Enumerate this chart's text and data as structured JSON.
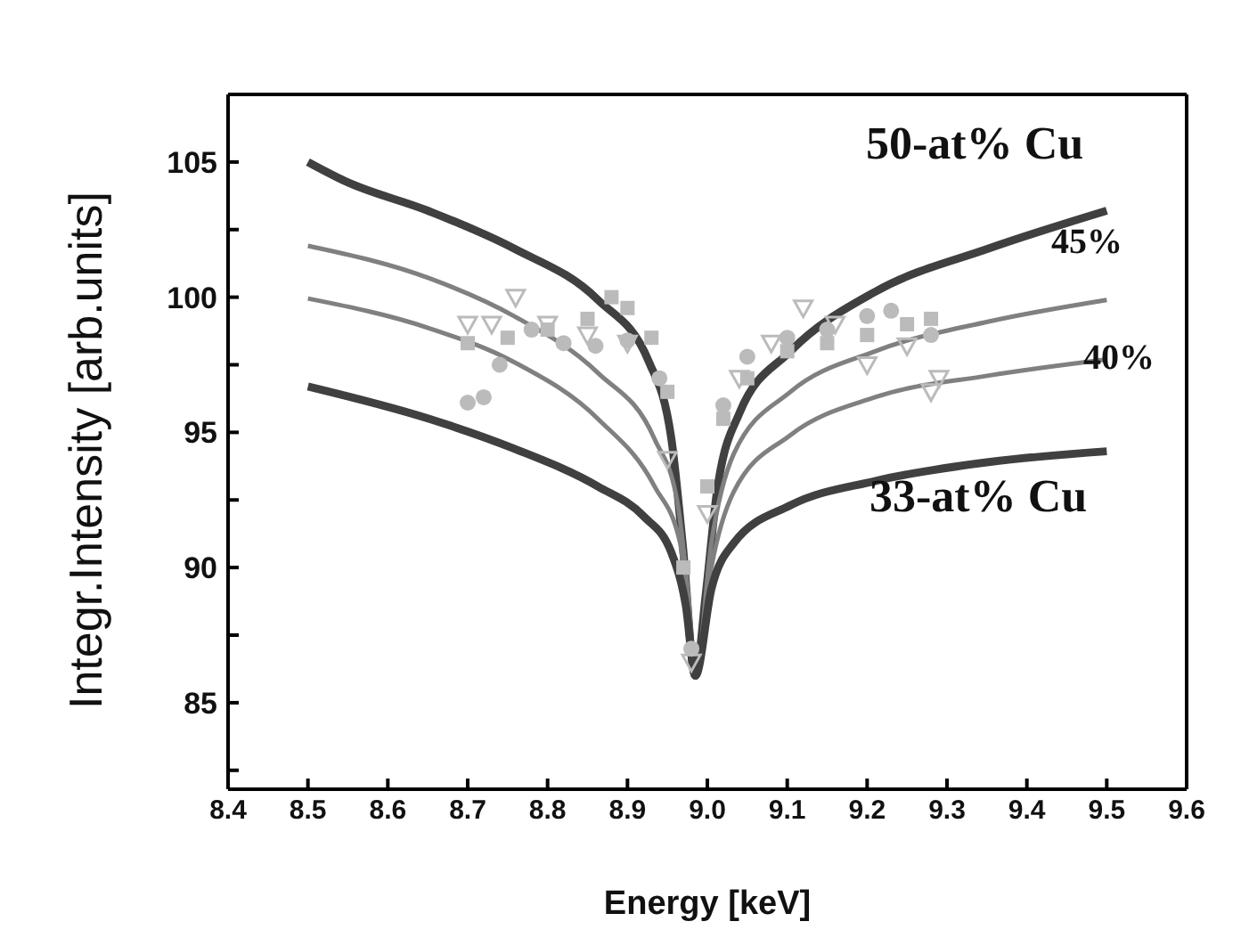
{
  "chart_data": {
    "type": "line",
    "xlabel": "Energy [keV]",
    "ylabel": "Integr.Intensity [arb.units]",
    "xlim": [
      8.4,
      9.6
    ],
    "xticks": [
      8.4,
      8.5,
      8.6,
      8.7,
      8.8,
      8.9,
      {
        "value": 9,
        "label": "9.0"
      },
      9.1,
      9.2,
      9.3,
      9.4,
      9.5,
      9.6
    ],
    "ylim": [
      81.8,
      107.5
    ],
    "yticks": [
      {
        "value": 82.5,
        "label": null
      },
      85,
      {
        "value": 87.5,
        "label": null
      },
      90,
      {
        "value": 92.5,
        "label": null
      },
      95,
      {
        "value": 97.5,
        "label": null
      },
      100,
      {
        "value": 102.5,
        "label": null
      },
      105
    ],
    "grid": false,
    "legend": false,
    "series": [
      {
        "color": "#404040",
        "x": [
          8.5,
          8.546,
          8.65,
          8.758,
          8.863,
          8.927,
          8.955,
          8.969,
          8.985,
          8.998,
          9.012,
          9.04,
          9.104,
          9.21,
          9.352,
          9.5
        ],
        "values": [
          105.0,
          104.3,
          103.2,
          101.8,
          99.9,
          97.6,
          94.75,
          90.9,
          86.0,
          89.0,
          92.8,
          95.7,
          98.0,
          100.2,
          101.8,
          103.2
        ]
      },
      {
        "color": "#808080",
        "x": [
          8.5,
          8.652,
          8.758,
          8.863,
          8.934,
          8.962,
          8.976,
          8.985,
          9.005,
          9.033,
          9.104,
          9.21,
          9.352,
          9.5
        ],
        "values": [
          101.9,
          100.7,
          99.3,
          97.2,
          94.75,
          92.5,
          89.0,
          86.0,
          90.9,
          94.2,
          96.5,
          98.0,
          99.1,
          99.9
        ]
      },
      {
        "color": "#808080",
        "x": [
          8.5,
          8.652,
          8.758,
          8.863,
          8.934,
          8.966,
          8.985,
          9.005,
          9.033,
          9.104,
          9.21,
          9.352,
          9.5
        ],
        "values": [
          99.95,
          98.85,
          97.6,
          95.5,
          93.0,
          90.9,
          86.0,
          90.0,
          92.8,
          94.9,
          96.3,
          97.1,
          97.7
        ]
      },
      {
        "color": "#404040",
        "x": [
          8.5,
          8.652,
          8.758,
          8.863,
          8.92,
          8.955,
          8.973,
          8.985,
          9.005,
          9.033,
          9.104,
          9.21,
          9.352,
          9.5
        ],
        "values": [
          96.7,
          95.5,
          94.4,
          93.0,
          91.9,
          90.55,
          88.6,
          86.0,
          89.2,
          90.9,
          92.3,
          93.2,
          93.9,
          94.3
        ]
      },
      {
        "type": "scatter",
        "marker": "square",
        "color": "#bbbbbb",
        "x": [
          8.7,
          8.75,
          8.8,
          8.85,
          8.88,
          8.9,
          8.93,
          8.95,
          8.97,
          9.0,
          9.02,
          9.05,
          9.1,
          9.15,
          9.2,
          9.25,
          9.28
        ],
        "values": [
          98.3,
          98.5,
          98.8,
          99.2,
          100.0,
          99.6,
          98.5,
          96.5,
          90.0,
          93.0,
          95.5,
          97.0,
          98.0,
          98.3,
          98.6,
          99.0,
          99.2
        ]
      },
      {
        "type": "scatter",
        "marker": "circle",
        "color": "#bbbbbb",
        "x": [
          8.7,
          8.72,
          8.74,
          8.78,
          8.82,
          8.86,
          8.9,
          8.94,
          8.98,
          9.02,
          9.05,
          9.1,
          9.15,
          9.2,
          9.23,
          9.28
        ],
        "values": [
          96.1,
          96.3,
          97.5,
          98.8,
          98.3,
          98.2,
          98.4,
          97.0,
          87.0,
          96.0,
          97.8,
          98.5,
          98.8,
          99.3,
          99.5,
          98.6
        ]
      },
      {
        "type": "scatter",
        "marker": "triangle",
        "color": "#bbbbbb",
        "x": [
          8.7,
          8.73,
          8.76,
          8.8,
          8.85,
          8.9,
          8.95,
          8.98,
          9.0,
          9.04,
          9.08,
          9.12,
          9.16,
          9.2,
          9.25,
          9.28,
          9.29
        ],
        "values": [
          99.0,
          99.0,
          100.0,
          99.0,
          98.6,
          98.3,
          94.0,
          86.5,
          92.0,
          97.0,
          98.3,
          99.6,
          99.0,
          97.5,
          98.2,
          96.5,
          97.0
        ]
      }
    ],
    "annotations": [
      "50-at% Cu",
      "45%",
      "40%",
      "33-at% Cu"
    ]
  }
}
